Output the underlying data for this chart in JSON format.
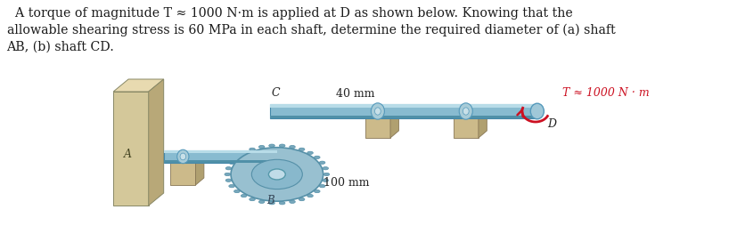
{
  "title_text": "  A torque of magnitude T ≈ 1000 N·m is applied at D as shown below. Knowing that the\nallowable shearing stress is 60 MPa in each shaft, determine the required diameter of (a) shaft\nAB, (b) shaft CD.",
  "background_color": "#ffffff",
  "text_color": "#1a1a1a",
  "label_A": "A",
  "label_B": "B",
  "label_C": "C",
  "label_D": "D",
  "label_40mm": "40 mm",
  "label_100mm": "100 mm",
  "label_T": "T ≈ 1000 N · m",
  "shaft_color_main": "#88bbd0",
  "shaft_highlight": "#b8dce8",
  "shaft_shadow": "#5090a8",
  "gear_outer": "#90bcd0",
  "gear_teeth": "#78aac0",
  "gear_hub": "#c0dce8",
  "wall_front": "#d4c89a",
  "wall_top": "#e8dab0",
  "wall_side": "#b8a878",
  "support_front": "#ccba8a",
  "support_top": "#deca9a",
  "support_side": "#b0a070",
  "bearing_color": "#a8ccd8",
  "bearing_highlight": "#c8e0e8",
  "arrow_color": "#cc1122",
  "figsize": [
    8.27,
    2.81
  ],
  "dpi": 100
}
